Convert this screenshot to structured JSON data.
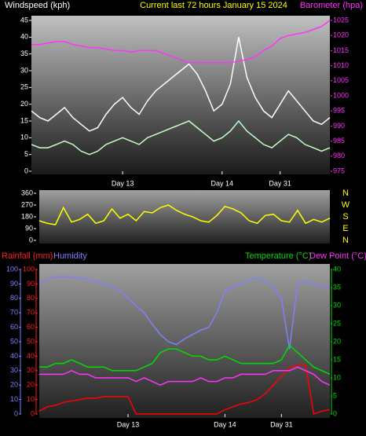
{
  "chart_data": [
    {
      "type": "line",
      "title": "Current last 72 hours January 15 2024",
      "ylabel": "Windspeed (kph)",
      "y2label": "Barometer (hpa)",
      "x": [
        0,
        2,
        4,
        6,
        8,
        10,
        12,
        14,
        16,
        18,
        20,
        22,
        24,
        26,
        28,
        30,
        32,
        34,
        36,
        38,
        40,
        42,
        44,
        46,
        48,
        50,
        52,
        54,
        56,
        58,
        60,
        62,
        64,
        66,
        68,
        70,
        72
      ],
      "xlim": [
        0,
        72
      ],
      "xticks": [
        {
          "value": 22,
          "label": "Day 13"
        },
        {
          "value": 46,
          "label": "Day 14"
        },
        {
          "value": 60,
          "label": "Day 31"
        }
      ],
      "ylim": [
        0,
        45
      ],
      "yticks": [
        0,
        5,
        10,
        15,
        20,
        25,
        30,
        35,
        40,
        45
      ],
      "y2lim": [
        975,
        1025
      ],
      "y2ticks": [
        975,
        980,
        985,
        990,
        995,
        1000,
        1005,
        1010,
        1015,
        1020,
        1025
      ],
      "series": [
        {
          "color": "#ffffff",
          "values": [
            18,
            16,
            15,
            17,
            19,
            16,
            14,
            12,
            13,
            17,
            20,
            22,
            19,
            17,
            21,
            24,
            26,
            28,
            30,
            32,
            29,
            24,
            18,
            20,
            26,
            40,
            28,
            22,
            18,
            16,
            20,
            24,
            21,
            18,
            15,
            14,
            16
          ]
        },
        {
          "color": "#c8ffc8",
          "values": [
            8,
            7,
            7,
            8,
            9,
            8,
            6,
            5,
            6,
            8,
            9,
            10,
            9,
            8,
            10,
            11,
            12,
            13,
            14,
            15,
            13,
            11,
            9,
            10,
            12,
            15,
            12,
            10,
            8,
            7,
            9,
            11,
            10,
            8,
            7,
            6,
            7
          ]
        },
        {
          "color": "#ff33ff",
          "axis": "y2",
          "values": [
            1017,
            1017,
            1017.5,
            1018,
            1018,
            1017,
            1016.5,
            1016,
            1016,
            1015.5,
            1015,
            1015,
            1014.5,
            1015,
            1015,
            1015,
            1014,
            1013,
            1012,
            1011,
            1011,
            1011,
            1011,
            1011,
            1011,
            1011.5,
            1012,
            1013,
            1015,
            1016.5,
            1019,
            1020,
            1020.5,
            1021,
            1022,
            1023,
            1025
          ]
        }
      ]
    },
    {
      "type": "line",
      "x": [
        0,
        2,
        4,
        6,
        8,
        10,
        12,
        14,
        16,
        18,
        20,
        22,
        24,
        26,
        28,
        30,
        32,
        34,
        36,
        38,
        40,
        42,
        44,
        46,
        48,
        50,
        52,
        54,
        56,
        58,
        60,
        62,
        64,
        66,
        68,
        70,
        72
      ],
      "xlim": [
        0,
        72
      ],
      "ylim": [
        0,
        360
      ],
      "yticks": [
        0,
        90,
        180,
        270,
        360
      ],
      "direction_labels": [
        "N",
        "W",
        "S",
        "E",
        "N"
      ],
      "series": [
        {
          "color": "#ffff00",
          "values": [
            150,
            130,
            120,
            250,
            140,
            160,
            200,
            130,
            150,
            240,
            170,
            200,
            150,
            220,
            210,
            250,
            270,
            230,
            200,
            180,
            150,
            140,
            190,
            260,
            240,
            210,
            150,
            130,
            190,
            200,
            150,
            140,
            230,
            130,
            160,
            140,
            170
          ]
        }
      ]
    },
    {
      "type": "line",
      "x": [
        0,
        2,
        4,
        6,
        8,
        10,
        12,
        14,
        16,
        18,
        20,
        22,
        24,
        26,
        28,
        30,
        32,
        34,
        36,
        38,
        40,
        42,
        44,
        46,
        48,
        50,
        52,
        54,
        56,
        58,
        60,
        62,
        64,
        66,
        68,
        70,
        72
      ],
      "xlim": [
        0,
        72
      ],
      "xticks": [
        {
          "value": 22,
          "label": "Day 13"
        },
        {
          "value": 46,
          "label": "Day 14"
        },
        {
          "value": 60,
          "label": "Day 31"
        }
      ],
      "ylim": [
        0,
        100
      ],
      "yticks": [
        0,
        10,
        20,
        30,
        40,
        50,
        60,
        70,
        80,
        90,
        100
      ],
      "y3lim": [
        0,
        100
      ],
      "y3ticks": [
        0,
        10,
        20,
        30,
        40,
        50,
        60,
        70,
        80,
        90,
        100
      ],
      "y2lim": [
        0,
        40
      ],
      "y2ticks": [
        0,
        5,
        10,
        15,
        20,
        25,
        30,
        35,
        40
      ],
      "series": [
        {
          "name": "Rainfall (mm)",
          "color": "#ff0000",
          "values": [
            2,
            5,
            6,
            8,
            9,
            10,
            11,
            11,
            12,
            12,
            12,
            12,
            0,
            0,
            0,
            0,
            0,
            0,
            0,
            0,
            0,
            0,
            0,
            3,
            5,
            7,
            8,
            10,
            14,
            20,
            26,
            32,
            34,
            34,
            0,
            2,
            3
          ]
        },
        {
          "name": "Humidity",
          "color": "#8080ff",
          "axis": "y3",
          "values": [
            90,
            93,
            95,
            95,
            95,
            94,
            93,
            92,
            90,
            88,
            85,
            80,
            75,
            70,
            62,
            55,
            50,
            48,
            52,
            55,
            58,
            60,
            70,
            85,
            88,
            90,
            93,
            94,
            92,
            88,
            80,
            45,
            90,
            92,
            90,
            88,
            88
          ]
        },
        {
          "name": "Temperature (°C)",
          "color": "#00dd00",
          "axis": "y2",
          "values": [
            13,
            13,
            14,
            14,
            15,
            14,
            13,
            13,
            13,
            12,
            12,
            12,
            12,
            13,
            14,
            17,
            18,
            18,
            17,
            16,
            16,
            15,
            15,
            16,
            15,
            14,
            14,
            14,
            14,
            14,
            15,
            19,
            17,
            15,
            13,
            12,
            11
          ]
        },
        {
          "name": "Dew Point (°C)",
          "color": "#ff33ff",
          "axis": "y2",
          "values": [
            11,
            11,
            11,
            11,
            12,
            11,
            11,
            10,
            10,
            10,
            10,
            10,
            9,
            10,
            9,
            8,
            9,
            9,
            9,
            9,
            10,
            9,
            9,
            10,
            10,
            11,
            11,
            11,
            11,
            12,
            12,
            12,
            13,
            12,
            11,
            9,
            8
          ]
        }
      ]
    }
  ]
}
